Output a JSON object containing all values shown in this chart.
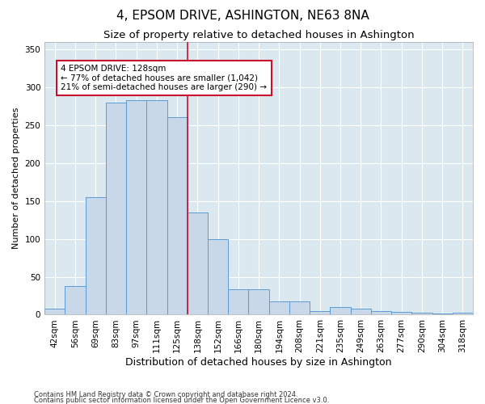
{
  "title": "4, EPSOM DRIVE, ASHINGTON, NE63 8NA",
  "subtitle": "Size of property relative to detached houses in Ashington",
  "xlabel": "Distribution of detached houses by size in Ashington",
  "ylabel": "Number of detached properties",
  "categories": [
    "42sqm",
    "56sqm",
    "69sqm",
    "83sqm",
    "97sqm",
    "111sqm",
    "125sqm",
    "138sqm",
    "152sqm",
    "166sqm",
    "180sqm",
    "194sqm",
    "208sqm",
    "221sqm",
    "235sqm",
    "249sqm",
    "263sqm",
    "277sqm",
    "290sqm",
    "304sqm",
    "318sqm"
  ],
  "values": [
    8,
    38,
    155,
    280,
    283,
    283,
    260,
    135,
    100,
    33,
    33,
    18,
    18,
    5,
    10,
    8,
    5,
    4,
    3,
    2,
    3
  ],
  "bar_color": "#c8d8e8",
  "bar_edge_color": "#5b9bd5",
  "highlight_color": "#c8102e",
  "vline_x": 6.5,
  "annotation_text": "4 EPSOM DRIVE: 128sqm\n← 77% of detached houses are smaller (1,042)\n21% of semi-detached houses are larger (290) →",
  "annotation_box_color": "#c8102e",
  "ylim": [
    0,
    360
  ],
  "yticks": [
    0,
    50,
    100,
    150,
    200,
    250,
    300,
    350
  ],
  "background_color": "#dce8f0",
  "footer1": "Contains HM Land Registry data © Crown copyright and database right 2024.",
  "footer2": "Contains public sector information licensed under the Open Government Licence v3.0.",
  "title_fontsize": 11,
  "subtitle_fontsize": 9.5,
  "xlabel_fontsize": 9,
  "ylabel_fontsize": 8,
  "tick_fontsize": 7.5
}
